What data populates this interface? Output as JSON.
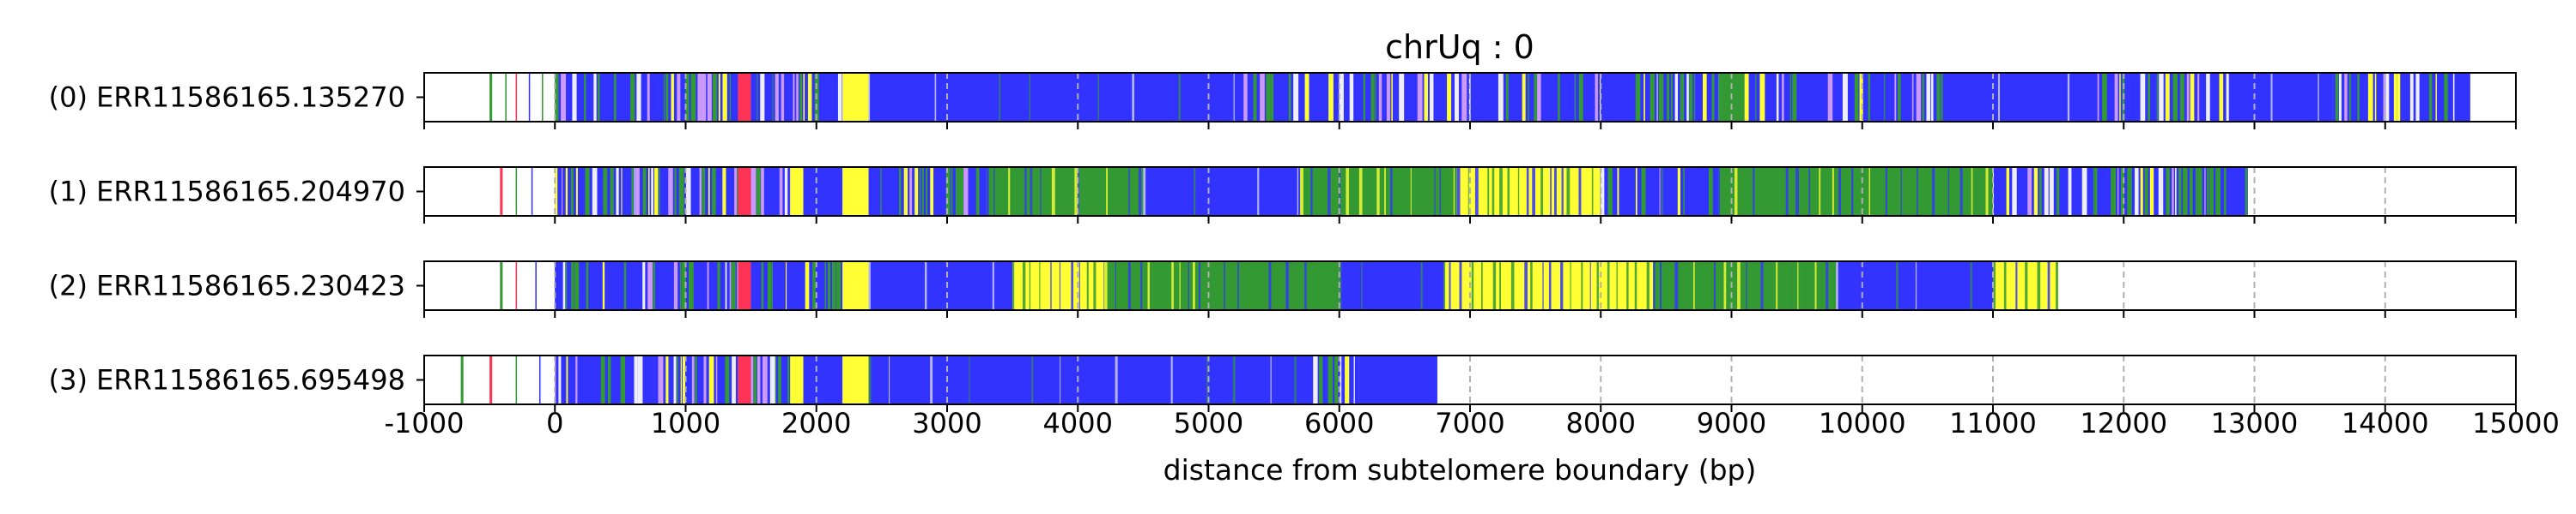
{
  "chart_data": {
    "type": "heatmap",
    "title": "chrUq : 0",
    "xlabel": "distance from subtelomere boundary (bp)",
    "ylabel": "",
    "xlim": [
      -1000,
      15000
    ],
    "x_ticks": [
      "-1000",
      "0",
      "1000",
      "2000",
      "3000",
      "4000",
      "5000",
      "6000",
      "7000",
      "8000",
      "9000",
      "10000",
      "11000",
      "12000",
      "13000",
      "14000",
      "15000"
    ],
    "grid": "vertical dashed at each x tick",
    "colors": {
      "blue": "#3333ff",
      "green": "#339933",
      "yellow": "#ffff33",
      "red": "#ff3355",
      "violet": "#cc99ff",
      "light": "#eeeeff"
    },
    "reads": [
      {
        "label": "(0) ERR11586165.135270",
        "segments": [
          [
            -500,
            -480,
            "green"
          ],
          [
            -380,
            -370,
            "green"
          ],
          [
            -300,
            -290,
            "red"
          ],
          [
            -200,
            -190,
            "blue"
          ],
          [
            -100,
            -90,
            "green"
          ],
          [
            0,
            1400,
            "mixed"
          ],
          [
            1400,
            1500,
            "red"
          ],
          [
            1500,
            2200,
            "mixed"
          ],
          [
            2200,
            2400,
            "yellow"
          ],
          [
            2400,
            5200,
            "blue"
          ],
          [
            5200,
            7800,
            "mixed"
          ],
          [
            7800,
            8900,
            "mixed"
          ],
          [
            8900,
            9100,
            "green"
          ],
          [
            9100,
            10600,
            "mixed"
          ],
          [
            10600,
            11800,
            "blue"
          ],
          [
            11800,
            12800,
            "mixed"
          ],
          [
            12800,
            13600,
            "blue"
          ],
          [
            13600,
            14650,
            "mixed"
          ]
        ]
      },
      {
        "label": "(1) ERR11586165.204970",
        "segments": [
          [
            -420,
            -400,
            "red"
          ],
          [
            -300,
            -290,
            "green"
          ],
          [
            -180,
            -170,
            "blue"
          ],
          [
            0,
            1400,
            "mixed"
          ],
          [
            1400,
            1500,
            "red"
          ],
          [
            1500,
            1800,
            "mixed"
          ],
          [
            1800,
            1900,
            "yellow"
          ],
          [
            1900,
            2200,
            "blue"
          ],
          [
            2200,
            2400,
            "yellow"
          ],
          [
            2400,
            3300,
            "mixed"
          ],
          [
            3300,
            4000,
            "green"
          ],
          [
            4000,
            4500,
            "green"
          ],
          [
            4500,
            5700,
            "blue"
          ],
          [
            5700,
            6900,
            "green"
          ],
          [
            6900,
            8000,
            "yellow"
          ],
          [
            8000,
            8900,
            "mixed"
          ],
          [
            8900,
            11000,
            "green"
          ],
          [
            11000,
            12950,
            "mixed"
          ]
        ]
      },
      {
        "label": "(2) ERR11586165.230423",
        "segments": [
          [
            -420,
            -400,
            "green"
          ],
          [
            -300,
            -290,
            "red"
          ],
          [
            -150,
            -140,
            "blue"
          ],
          [
            0,
            1400,
            "mixed"
          ],
          [
            1400,
            1500,
            "red"
          ],
          [
            1500,
            2200,
            "mixed"
          ],
          [
            2200,
            2400,
            "yellow"
          ],
          [
            2400,
            3500,
            "blue"
          ],
          [
            3500,
            4200,
            "yellow"
          ],
          [
            4200,
            6000,
            "green"
          ],
          [
            6000,
            6800,
            "blue"
          ],
          [
            6800,
            8400,
            "yellow"
          ],
          [
            8400,
            9800,
            "green"
          ],
          [
            9800,
            11000,
            "blue"
          ],
          [
            11000,
            11500,
            "yellow"
          ]
        ]
      },
      {
        "label": "(3) ERR11586165.695498",
        "segments": [
          [
            -720,
            -700,
            "green"
          ],
          [
            -500,
            -480,
            "red"
          ],
          [
            -300,
            -290,
            "green"
          ],
          [
            -120,
            -110,
            "blue"
          ],
          [
            0,
            1400,
            "mixed"
          ],
          [
            1400,
            1500,
            "red"
          ],
          [
            1500,
            1800,
            "mixed"
          ],
          [
            1800,
            1900,
            "yellow"
          ],
          [
            1900,
            2200,
            "blue"
          ],
          [
            2200,
            2400,
            "yellow"
          ],
          [
            2400,
            5800,
            "blue"
          ],
          [
            5800,
            6150,
            "mixed"
          ],
          [
            6150,
            6750,
            "blue"
          ]
        ]
      }
    ]
  }
}
